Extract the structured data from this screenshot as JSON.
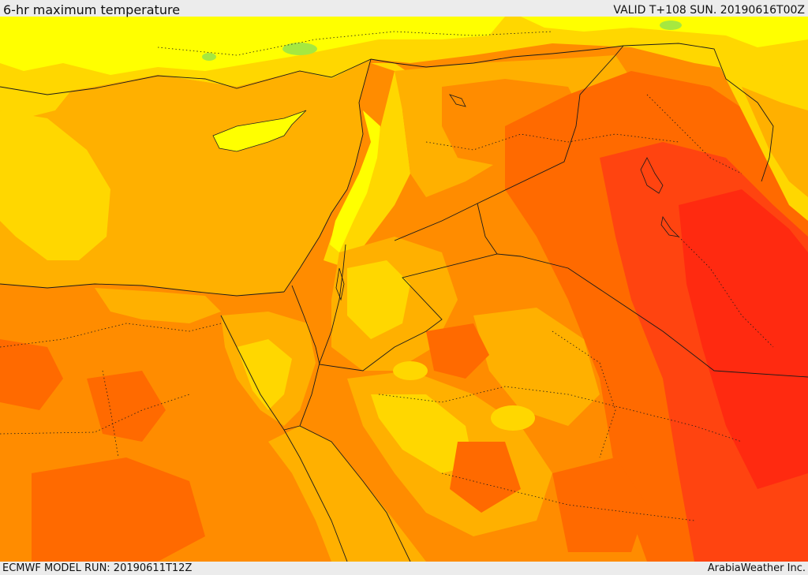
{
  "header": {
    "title": "6-hr maximum temperature",
    "valid": "VALID T+108 SUN. 20190616T00Z"
  },
  "footer": {
    "model_run": "ECMWF MODEL RUN: 20190611T12Z",
    "credit": "ArabiaWeather Inc."
  },
  "map": {
    "region": "Eastern Mediterranean and Middle East",
    "parameter": "6-hr maximum temperature",
    "colors": {
      "pale_yellow": "#ffff00",
      "light_green": "#a6e840",
      "gold": "#ffd700",
      "amber": "#ffb000",
      "orange": "#ff8c00",
      "deep_orange": "#ff6a00",
      "red_orange": "#ff4410",
      "red": "#ff2a10",
      "sea": "#ffb000"
    }
  }
}
